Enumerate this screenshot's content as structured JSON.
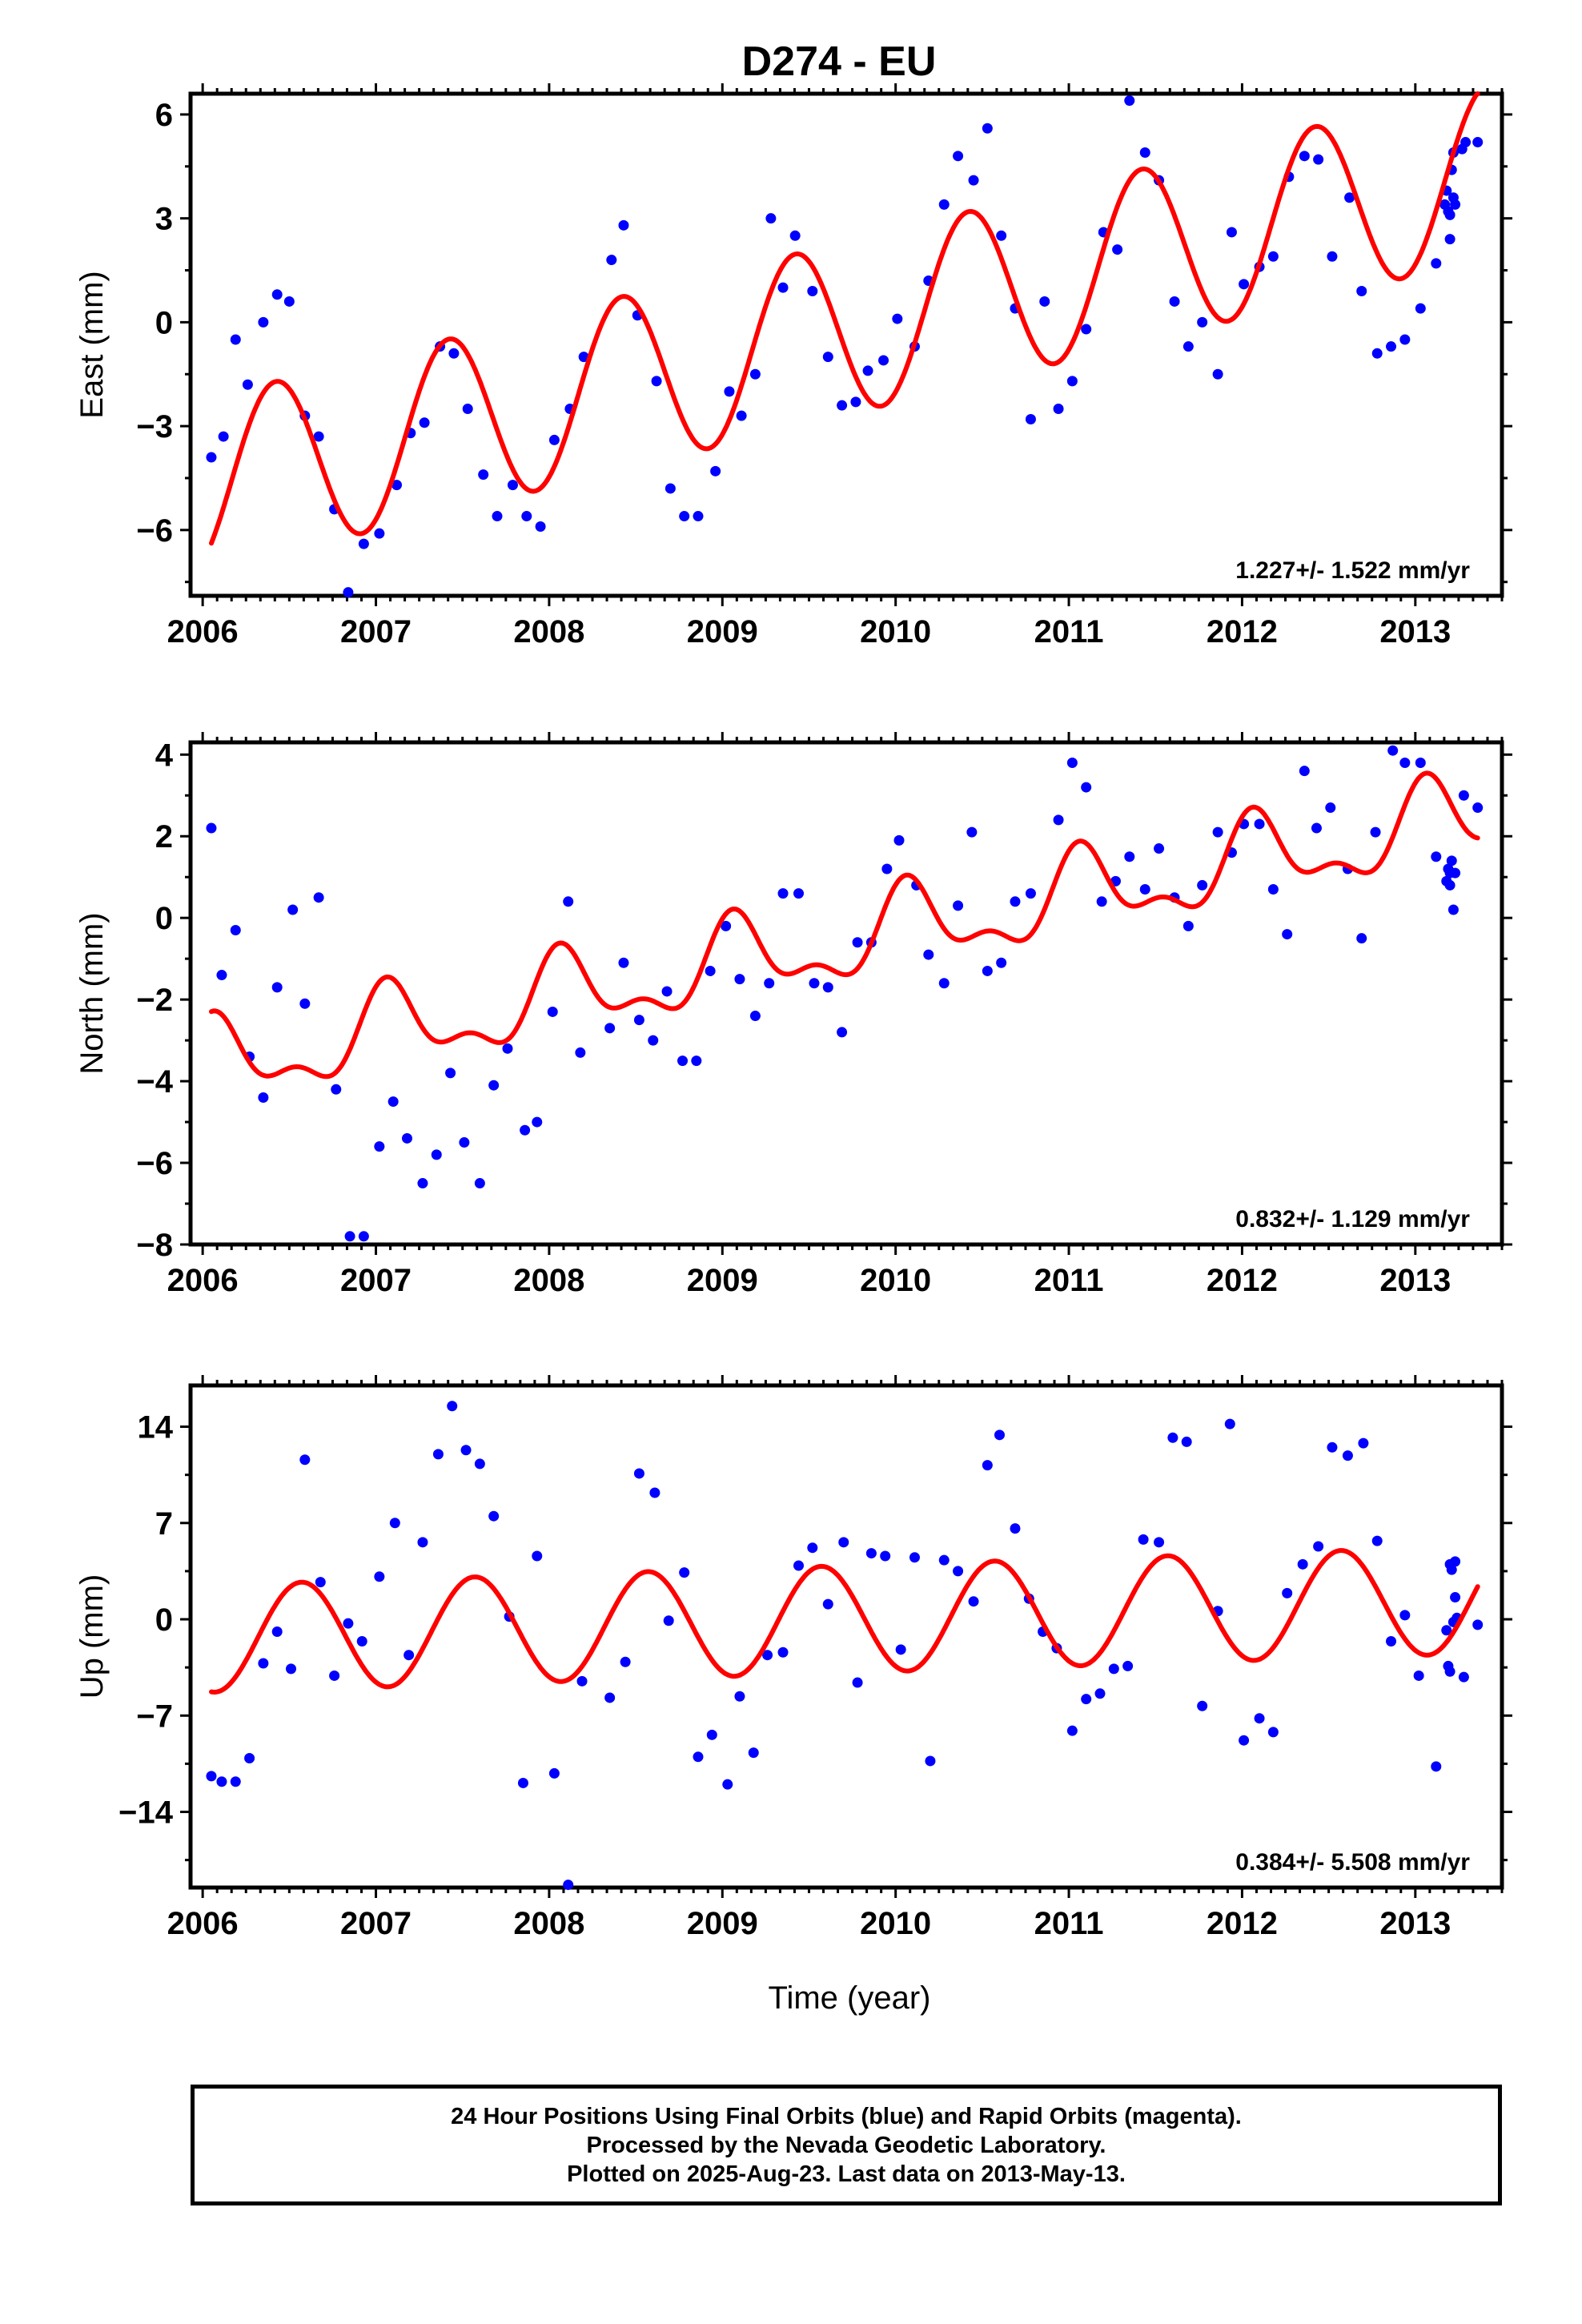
{
  "title": "D274 - EU",
  "xlabel": "Time (year)",
  "colors": {
    "data": "#0000ff",
    "model": "#ff0000",
    "frame": "#000000"
  },
  "footer": {
    "line1": "24 Hour Positions Using Final Orbits (blue) and Rapid Orbits (magenta).",
    "line2": "Processed by the Nevada Geodetic Laboratory.",
    "line3": "Plotted on 2025-Aug-23. Last data on 2013-May-13."
  },
  "chart_data": [
    {
      "type": "scatter",
      "ylabel": "East (mm)",
      "xlim": [
        2005.93,
        2013.5
      ],
      "ylim": [
        -7.9,
        6.6
      ],
      "x_ticks": [
        "2006",
        "2007",
        "2008",
        "2009",
        "2010",
        "2011",
        "2012",
        "2013"
      ],
      "y_ticks": [
        "6",
        "3",
        "0",
        "−3",
        "−6"
      ],
      "y_tick_values": [
        6,
        3,
        0,
        -3,
        -6
      ],
      "rate_label": "1.227+/- 1.522 mm/yr",
      "model": {
        "trend_slope": 1.227,
        "trend_intercept": -4.73,
        "trend_epoch": 2006.0,
        "annual_amplitude": 2.5,
        "annual_peak_frac": 0.42,
        "x_range": [
          2006.05,
          2013.36
        ]
      },
      "points": [
        [
          2006.05,
          -3.9
        ],
        [
          2006.12,
          -3.3
        ],
        [
          2006.19,
          -0.5
        ],
        [
          2006.26,
          -1.8
        ],
        [
          2006.35,
          0.0
        ],
        [
          2006.43,
          0.8
        ],
        [
          2006.5,
          0.6
        ],
        [
          2006.59,
          -2.7
        ],
        [
          2006.67,
          -3.3
        ],
        [
          2006.76,
          -5.4
        ],
        [
          2006.84,
          -7.8
        ],
        [
          2006.93,
          -6.4
        ],
        [
          2007.02,
          -6.1
        ],
        [
          2007.12,
          -4.7
        ],
        [
          2007.2,
          -3.2
        ],
        [
          2007.28,
          -2.9
        ],
        [
          2007.37,
          -0.7
        ],
        [
          2007.45,
          -0.9
        ],
        [
          2007.53,
          -2.5
        ],
        [
          2007.62,
          -4.4
        ],
        [
          2007.7,
          -5.6
        ],
        [
          2007.79,
          -4.7
        ],
        [
          2007.87,
          -5.6
        ],
        [
          2007.95,
          -5.9
        ],
        [
          2008.03,
          -3.4
        ],
        [
          2008.12,
          -2.5
        ],
        [
          2008.2,
          -1.0
        ],
        [
          2008.36,
          1.8
        ],
        [
          2008.43,
          2.8
        ],
        [
          2008.51,
          0.2
        ],
        [
          2008.62,
          -1.7
        ],
        [
          2008.7,
          -4.8
        ],
        [
          2008.78,
          -5.6
        ],
        [
          2008.86,
          -5.6
        ],
        [
          2008.96,
          -4.3
        ],
        [
          2009.04,
          -2.0
        ],
        [
          2009.11,
          -2.7
        ],
        [
          2009.19,
          -1.5
        ],
        [
          2009.28,
          3.0
        ],
        [
          2009.35,
          1.0
        ],
        [
          2009.42,
          2.5
        ],
        [
          2009.52,
          0.9
        ],
        [
          2009.61,
          -1.0
        ],
        [
          2009.69,
          -2.4
        ],
        [
          2009.77,
          -2.3
        ],
        [
          2009.84,
          -1.4
        ],
        [
          2009.93,
          -1.1
        ],
        [
          2010.01,
          0.1
        ],
        [
          2010.11,
          -0.7
        ],
        [
          2010.19,
          1.2
        ],
        [
          2010.28,
          3.4
        ],
        [
          2010.36,
          4.8
        ],
        [
          2010.45,
          4.1
        ],
        [
          2010.53,
          5.6
        ],
        [
          2010.61,
          2.5
        ],
        [
          2010.69,
          0.4
        ],
        [
          2010.78,
          -2.8
        ],
        [
          2010.86,
          0.6
        ],
        [
          2010.94,
          -2.5
        ],
        [
          2011.02,
          -1.7
        ],
        [
          2011.1,
          -0.2
        ],
        [
          2011.2,
          2.6
        ],
        [
          2011.28,
          2.1
        ],
        [
          2011.35,
          6.4
        ],
        [
          2011.44,
          4.9
        ],
        [
          2011.52,
          4.1
        ],
        [
          2011.61,
          0.6
        ],
        [
          2011.69,
          -0.7
        ],
        [
          2011.77,
          0.0
        ],
        [
          2011.86,
          -1.5
        ],
        [
          2011.94,
          2.6
        ],
        [
          2012.01,
          1.1
        ],
        [
          2012.1,
          1.6
        ],
        [
          2012.18,
          1.9
        ],
        [
          2012.27,
          4.2
        ],
        [
          2012.36,
          4.8
        ],
        [
          2012.44,
          4.7
        ],
        [
          2012.52,
          1.9
        ],
        [
          2012.62,
          3.6
        ],
        [
          2012.69,
          0.9
        ],
        [
          2012.78,
          -0.9
        ],
        [
          2012.86,
          -0.7
        ],
        [
          2012.94,
          -0.5
        ],
        [
          2013.03,
          0.4
        ],
        [
          2013.12,
          1.7
        ],
        [
          2013.17,
          3.4
        ],
        [
          2013.18,
          3.8
        ],
        [
          2013.19,
          3.2
        ],
        [
          2013.2,
          2.4
        ],
        [
          2013.2,
          3.1
        ],
        [
          2013.21,
          4.4
        ],
        [
          2013.22,
          4.9
        ],
        [
          2013.22,
          3.6
        ],
        [
          2013.23,
          3.4
        ],
        [
          2013.27,
          5.0
        ],
        [
          2013.29,
          5.2
        ],
        [
          2013.36,
          5.2
        ]
      ]
    },
    {
      "type": "scatter",
      "ylabel": "North (mm)",
      "xlim": [
        2005.93,
        2013.5
      ],
      "ylim": [
        -8.0,
        4.3
      ],
      "x_ticks": [
        "2006",
        "2007",
        "2008",
        "2009",
        "2010",
        "2011",
        "2012",
        "2013"
      ],
      "y_ticks": [
        "4",
        "2",
        "0",
        "−2",
        "−4",
        "−6",
        "−8"
      ],
      "y_tick_values": [
        4,
        2,
        0,
        -2,
        -4,
        -6,
        -8
      ],
      "rate_label": "0.832+/- 1.129 mm/yr",
      "model": {
        "trend_slope": 0.832,
        "trend_intercept": -3.67,
        "trend_epoch": 2006.0,
        "annual_amplitude": 0.9,
        "annual_peak_frac": 0.08,
        "semiannual_amplitude": 0.45,
        "semiannual_peak_frac": 0.05,
        "x_range": [
          2006.05,
          2013.36
        ]
      },
      "points": [
        [
          2006.05,
          2.2
        ],
        [
          2006.11,
          -1.4
        ],
        [
          2006.19,
          -0.3
        ],
        [
          2006.27,
          -3.4
        ],
        [
          2006.35,
          -4.4
        ],
        [
          2006.43,
          -1.7
        ],
        [
          2006.52,
          0.2
        ],
        [
          2006.59,
          -2.1
        ],
        [
          2006.67,
          0.5
        ],
        [
          2006.77,
          -4.2
        ],
        [
          2006.85,
          -7.8
        ],
        [
          2006.93,
          -7.8
        ],
        [
          2007.02,
          -5.6
        ],
        [
          2007.1,
          -4.5
        ],
        [
          2007.18,
          -5.4
        ],
        [
          2007.27,
          -6.5
        ],
        [
          2007.35,
          -5.8
        ],
        [
          2007.43,
          -3.8
        ],
        [
          2007.51,
          -5.5
        ],
        [
          2007.6,
          -6.5
        ],
        [
          2007.68,
          -4.1
        ],
        [
          2007.76,
          -3.2
        ],
        [
          2007.86,
          -5.2
        ],
        [
          2007.93,
          -5.0
        ],
        [
          2008.02,
          -2.3
        ],
        [
          2008.11,
          0.4
        ],
        [
          2008.18,
          -3.3
        ],
        [
          2008.35,
          -2.7
        ],
        [
          2008.43,
          -1.1
        ],
        [
          2008.52,
          -2.5
        ],
        [
          2008.6,
          -3.0
        ],
        [
          2008.68,
          -1.8
        ],
        [
          2008.77,
          -3.5
        ],
        [
          2008.85,
          -3.5
        ],
        [
          2008.93,
          -1.3
        ],
        [
          2009.02,
          -0.2
        ],
        [
          2009.1,
          -1.5
        ],
        [
          2009.19,
          -2.4
        ],
        [
          2009.27,
          -1.6
        ],
        [
          2009.35,
          0.6
        ],
        [
          2009.44,
          0.6
        ],
        [
          2009.53,
          -1.6
        ],
        [
          2009.61,
          -1.7
        ],
        [
          2009.69,
          -2.8
        ],
        [
          2009.78,
          -0.6
        ],
        [
          2009.86,
          -0.6
        ],
        [
          2009.95,
          1.2
        ],
        [
          2010.02,
          1.9
        ],
        [
          2010.12,
          0.8
        ],
        [
          2010.19,
          -0.9
        ],
        [
          2010.28,
          -1.6
        ],
        [
          2010.36,
          0.3
        ],
        [
          2010.44,
          2.1
        ],
        [
          2010.53,
          -1.3
        ],
        [
          2010.61,
          -1.1
        ],
        [
          2010.69,
          0.4
        ],
        [
          2010.78,
          0.6
        ],
        [
          2010.94,
          2.4
        ],
        [
          2011.02,
          3.8
        ],
        [
          2011.1,
          3.2
        ],
        [
          2011.19,
          0.4
        ],
        [
          2011.27,
          0.9
        ],
        [
          2011.35,
          1.5
        ],
        [
          2011.44,
          0.7
        ],
        [
          2011.52,
          1.7
        ],
        [
          2011.61,
          0.5
        ],
        [
          2011.69,
          -0.2
        ],
        [
          2011.77,
          0.8
        ],
        [
          2011.86,
          2.1
        ],
        [
          2011.94,
          1.6
        ],
        [
          2012.01,
          2.3
        ],
        [
          2012.1,
          2.3
        ],
        [
          2012.18,
          0.7
        ],
        [
          2012.26,
          -0.4
        ],
        [
          2012.36,
          3.6
        ],
        [
          2012.43,
          2.2
        ],
        [
          2012.51,
          2.7
        ],
        [
          2012.61,
          1.2
        ],
        [
          2012.69,
          -0.5
        ],
        [
          2012.77,
          2.1
        ],
        [
          2012.87,
          4.1
        ],
        [
          2012.94,
          3.8
        ],
        [
          2013.03,
          3.8
        ],
        [
          2013.12,
          1.5
        ],
        [
          2013.18,
          0.9
        ],
        [
          2013.19,
          1.2
        ],
        [
          2013.2,
          0.8
        ],
        [
          2013.2,
          1.1
        ],
        [
          2013.21,
          1.4
        ],
        [
          2013.22,
          0.2
        ],
        [
          2013.23,
          1.1
        ],
        [
          2013.28,
          3.0
        ],
        [
          2013.36,
          2.7
        ]
      ]
    },
    {
      "type": "scatter",
      "ylabel": "Up (mm)",
      "xlim": [
        2005.93,
        2013.5
      ],
      "ylim": [
        -19.5,
        17.0
      ],
      "x_ticks": [
        "2006",
        "2007",
        "2008",
        "2009",
        "2010",
        "2011",
        "2012",
        "2013"
      ],
      "y_ticks": [
        "14",
        "7",
        "0",
        "−7",
        "−14"
      ],
      "y_tick_values": [
        14,
        7,
        0,
        -7,
        -14
      ],
      "rate_label": "0.384+/- 5.508 mm/yr",
      "model": {
        "trend_slope": 0.384,
        "trend_intercept": 0.0,
        "trend_epoch": 2009.7,
        "annual_amplitude": 3.9,
        "annual_peak_frac": 0.57,
        "x_range": [
          2006.05,
          2013.36
        ]
      },
      "points": [
        [
          2006.05,
          -11.4
        ],
        [
          2006.11,
          -11.8
        ],
        [
          2006.19,
          -11.8
        ],
        [
          2006.27,
          -10.1
        ],
        [
          2006.35,
          -3.2
        ],
        [
          2006.43,
          -0.9
        ],
        [
          2006.51,
          -3.6
        ],
        [
          2006.59,
          11.6
        ],
        [
          2006.68,
          2.7
        ],
        [
          2006.76,
          -4.1
        ],
        [
          2006.84,
          -0.3
        ],
        [
          2006.92,
          -1.6
        ],
        [
          2007.02,
          3.1
        ],
        [
          2007.11,
          7.0
        ],
        [
          2007.19,
          -2.6
        ],
        [
          2007.27,
          5.6
        ],
        [
          2007.36,
          12.0
        ],
        [
          2007.44,
          15.5
        ],
        [
          2007.52,
          12.3
        ],
        [
          2007.6,
          11.3
        ],
        [
          2007.68,
          7.5
        ],
        [
          2007.77,
          0.2
        ],
        [
          2007.85,
          -11.9
        ],
        [
          2007.93,
          4.6
        ],
        [
          2008.03,
          -11.2
        ],
        [
          2008.11,
          -19.3
        ],
        [
          2008.19,
          -4.5
        ],
        [
          2008.35,
          -5.7
        ],
        [
          2008.44,
          -3.1
        ],
        [
          2008.52,
          10.6
        ],
        [
          2008.61,
          9.2
        ],
        [
          2008.69,
          -0.1
        ],
        [
          2008.78,
          3.4
        ],
        [
          2008.86,
          -10.0
        ],
        [
          2008.94,
          -8.4
        ],
        [
          2009.03,
          -12.0
        ],
        [
          2009.1,
          -5.6
        ],
        [
          2009.18,
          -9.7
        ],
        [
          2009.26,
          -2.6
        ],
        [
          2009.35,
          -2.4
        ],
        [
          2009.44,
          3.9
        ],
        [
          2009.52,
          5.2
        ],
        [
          2009.61,
          1.1
        ],
        [
          2009.7,
          5.6
        ],
        [
          2009.78,
          -4.6
        ],
        [
          2009.86,
          4.8
        ],
        [
          2009.94,
          4.6
        ],
        [
          2010.03,
          -2.2
        ],
        [
          2010.11,
          4.5
        ],
        [
          2010.2,
          -10.3
        ],
        [
          2010.28,
          4.3
        ],
        [
          2010.36,
          3.5
        ],
        [
          2010.45,
          1.3
        ],
        [
          2010.53,
          11.2
        ],
        [
          2010.6,
          13.4
        ],
        [
          2010.69,
          6.6
        ],
        [
          2010.77,
          1.5
        ],
        [
          2010.85,
          -0.9
        ],
        [
          2010.93,
          -2.1
        ],
        [
          2011.02,
          -8.1
        ],
        [
          2011.1,
          -5.8
        ],
        [
          2011.18,
          -5.4
        ],
        [
          2011.26,
          -3.6
        ],
        [
          2011.34,
          -3.4
        ],
        [
          2011.43,
          5.8
        ],
        [
          2011.52,
          5.6
        ],
        [
          2011.6,
          13.2
        ],
        [
          2011.68,
          12.9
        ],
        [
          2011.77,
          -6.3
        ],
        [
          2011.86,
          0.6
        ],
        [
          2011.93,
          14.2
        ],
        [
          2012.01,
          -8.8
        ],
        [
          2012.1,
          -7.2
        ],
        [
          2012.18,
          -8.2
        ],
        [
          2012.26,
          1.9
        ],
        [
          2012.35,
          4.0
        ],
        [
          2012.44,
          5.3
        ],
        [
          2012.52,
          12.5
        ],
        [
          2012.61,
          11.9
        ],
        [
          2012.7,
          12.8
        ],
        [
          2012.78,
          5.7
        ],
        [
          2012.86,
          -1.6
        ],
        [
          2012.94,
          0.3
        ],
        [
          2013.02,
          -4.1
        ],
        [
          2013.12,
          -10.7
        ],
        [
          2013.18,
          -0.8
        ],
        [
          2013.19,
          -3.4
        ],
        [
          2013.2,
          4.0
        ],
        [
          2013.2,
          -3.8
        ],
        [
          2013.21,
          3.6
        ],
        [
          2013.22,
          -0.2
        ],
        [
          2013.23,
          4.2
        ],
        [
          2013.23,
          1.6
        ],
        [
          2013.24,
          0.1
        ],
        [
          2013.28,
          -4.2
        ],
        [
          2013.36,
          -0.4
        ]
      ]
    }
  ]
}
